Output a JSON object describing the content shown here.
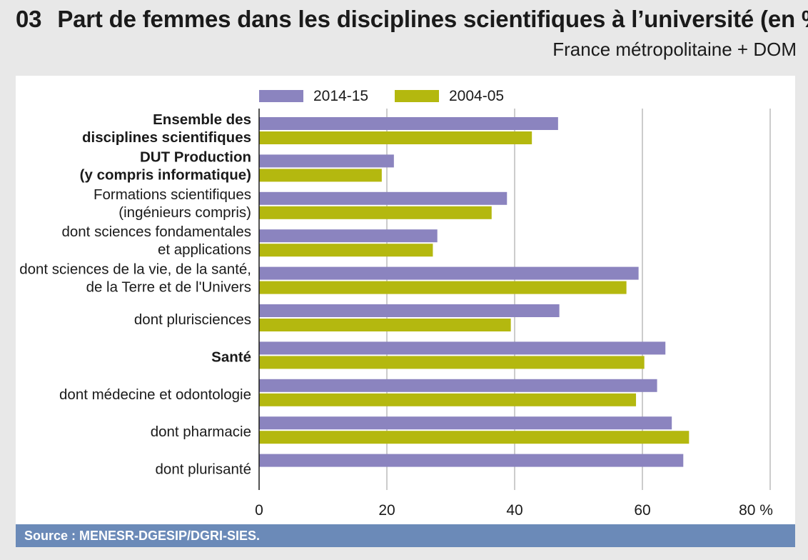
{
  "header": {
    "number": "03",
    "title": "Part de femmes dans les disciplines scientifiques à l’université (en %)",
    "subtitle": "France métropolitaine + DOM"
  },
  "source": "Source : MENESR-DGESIP/DGRI-SIES.",
  "colors": {
    "s2015": "#8b84bf",
    "s2005": "#b4b80f",
    "grid": "#9a9a9a"
  },
  "chart_data": {
    "type": "bar",
    "orientation": "horizontal",
    "title": "Part de femmes dans les disciplines scientifiques à l’université (en %)",
    "xlabel": "",
    "ylabel": "",
    "xlim": [
      0,
      80
    ],
    "xticks": [
      0,
      20,
      40,
      60,
      80
    ],
    "xtick_labels": [
      "0",
      "20",
      "40",
      "60",
      "80 %"
    ],
    "grid": true,
    "legend_position": "top",
    "categories": [
      {
        "lines": [
          "Ensemble des",
          "disciplines scientifiques"
        ],
        "bold": true
      },
      {
        "lines": [
          "DUT Production",
          "(y compris informatique)"
        ],
        "bold": true
      },
      {
        "lines": [
          "Formations scientifiques",
          "(ingénieurs compris)"
        ],
        "bold": false
      },
      {
        "lines": [
          "dont sciences fondamentales",
          "et applications"
        ],
        "bold": false
      },
      {
        "lines": [
          "dont sciences de la vie, de la santé,",
          "de la Terre et de l'Univers"
        ],
        "bold": false
      },
      {
        "lines": [
          "dont plurisciences"
        ],
        "bold": false
      },
      {
        "lines": [
          "Santé"
        ],
        "bold": true
      },
      {
        "lines": [
          "dont médecine et odontologie"
        ],
        "bold": false
      },
      {
        "lines": [
          "dont pharmacie"
        ],
        "bold": false
      },
      {
        "lines": [
          "dont plurisanté"
        ],
        "bold": false
      }
    ],
    "series": [
      {
        "name": "2014-15",
        "color": "#8b84bf",
        "values": [
          46.8,
          21.1,
          38.8,
          27.9,
          59.4,
          47.0,
          63.6,
          62.3,
          64.6,
          66.4
        ]
      },
      {
        "name": "2004-05",
        "color": "#b4b80f",
        "values": [
          42.7,
          19.2,
          36.4,
          27.2,
          57.5,
          39.4,
          60.3,
          59.0,
          67.3,
          null
        ]
      }
    ]
  }
}
